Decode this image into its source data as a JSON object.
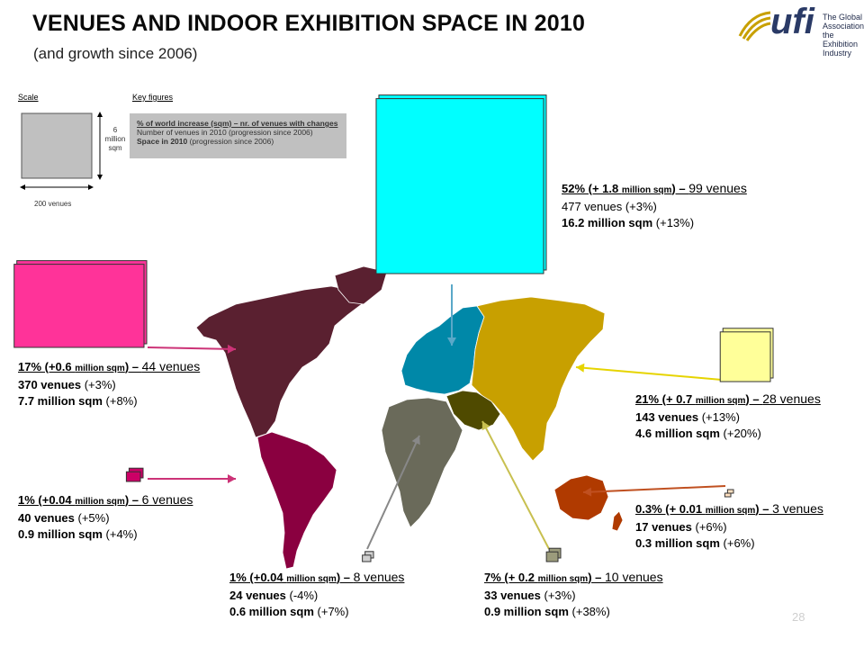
{
  "title": "VENUES AND INDOOR EXHIBITION SPACE IN 2010",
  "subtitle": "(and growth since 2006)",
  "logo": {
    "word": "ufi",
    "tagline_1": "The Global",
    "tagline_2": "Association of the",
    "tagline_3": "Exhibition Industry"
  },
  "legend": {
    "scale_label": "Scale",
    "key_label": "Key figures",
    "height_label_1": "6",
    "height_label_2": "million",
    "height_label_3": "sqm",
    "width_label": "200 venues",
    "key_line_1": "% of world increase (sqm) – nr. of venues with changes",
    "key_line_2": "Number of venues in 2010 (progression since 2006)",
    "key_line_3_bold": "Space in 2010",
    "key_line_3_rest": " (progression since 2006)"
  },
  "page_number": "28",
  "colors": {
    "europe": "#00ffff",
    "europe_map": "#0088a8",
    "north_america": "#ff3399",
    "north_america_map": "#5a2030",
    "asia": "#ffff99",
    "asia_map": "#c8a000",
    "latin_america": "#cc0066",
    "latin_america_map": "#8a0040",
    "africa": "#d0d0d0",
    "africa_map": "#6a6a5a",
    "middle_east": "#9c9c7c",
    "middle_east_map": "#4f4a00",
    "oceania": "#ffe0c0",
    "oceania_map": "#b03a00"
  },
  "chart_data": {
    "type": "map-proportional-rectangles",
    "title": "VENUES AND INDOOR EXHIBITION SPACE IN 2010",
    "subtitle": "(and growth since 2006)",
    "scale": {
      "height_value": 6,
      "height_unit": "million sqm",
      "width_value": 200,
      "width_unit": "venues"
    },
    "regions": [
      {
        "key": "europe",
        "share_of_increase": "52%",
        "space_increase": "+ 1.8",
        "venues_with_changes": "99",
        "venues": 477,
        "venues_growth": "+3%",
        "space": 16.2,
        "space_growth": "+13%",
        "line1_a": "52% (+ 1.8 ",
        "line1_unit": "million sqm",
        "line1_b": ") – ",
        "line1_venues": "99 venues",
        "line2_a": "477 venues",
        "line2_b": " (+3%)",
        "line3_a": "16.2 million sqm",
        "line3_b": " (+13%)"
      },
      {
        "key": "asia",
        "share_of_increase": "21%",
        "space_increase": "+ 0.7",
        "venues_with_changes": "28",
        "venues": 143,
        "venues_growth": "+13%",
        "space": 4.6,
        "space_growth": "+20%",
        "line1_a": "21% (+ 0.7 ",
        "line1_unit": "million sqm",
        "line1_b": ") – ",
        "line1_venues": "28 venues",
        "line2_a": "143 venues",
        "line2_b": " (+13%)",
        "line3_a": "4.6 million sqm",
        "line3_b": " (+20%)"
      },
      {
        "key": "north_america",
        "share_of_increase": "17%",
        "space_increase": "+0.6",
        "venues_with_changes": "44",
        "venues": 370,
        "venues_growth": "+3%",
        "space": 7.7,
        "space_growth": "+8%",
        "line1_a": "17% (+0.6 ",
        "line1_unit": "million sqm",
        "line1_b": ") – ",
        "line1_venues": "44 venues",
        "line2_a": "370 venues",
        "line2_b": " (+3%)",
        "line3_a": "7.7 million sqm",
        "line3_b": " (+8%)"
      },
      {
        "key": "latin_america",
        "share_of_increase": "1%",
        "space_increase": "+0.04",
        "venues_with_changes": "6",
        "venues": 40,
        "venues_growth": "+5%",
        "space": 0.9,
        "space_growth": "+4%",
        "line1_a": "1% (+0.04 ",
        "line1_unit": "million sqm",
        "line1_b": ") – ",
        "line1_venues": "6 venues",
        "line2_a": "40 venues",
        "line2_b": " (+5%)",
        "line3_a": "0.9 million sqm",
        "line3_b": " (+4%)"
      },
      {
        "key": "africa",
        "share_of_increase": "1%",
        "space_increase": "+0.04",
        "venues_with_changes": "8",
        "venues": 24,
        "venues_growth": "-4%",
        "space": 0.6,
        "space_growth": "+7%",
        "line1_a": "1% (+0.04 ",
        "line1_unit": "million sqm",
        "line1_b": ") – ",
        "line1_venues": "8 venues",
        "line2_a": "24 venues",
        "line2_b": " (-4%)",
        "line3_a": "0.6 million sqm",
        "line3_b": " (+7%)"
      },
      {
        "key": "middle_east",
        "share_of_increase": "7%",
        "space_increase": "+ 0.2",
        "venues_with_changes": "10",
        "venues": 33,
        "venues_growth": "+3%",
        "space": 0.9,
        "space_growth": "+38%",
        "line1_a": "7% (+ 0.2 ",
        "line1_unit": "million sqm",
        "line1_b": ") – ",
        "line1_venues": "10 venues",
        "line2_a": "33 venues",
        "line2_b": " (+3%)",
        "line3_a": "0.9 million sqm",
        "line3_b": " (+38%)"
      },
      {
        "key": "oceania",
        "share_of_increase": "0.3%",
        "space_increase": "+ 0.01",
        "venues_with_changes": "3",
        "venues": 17,
        "venues_growth": "+6%",
        "space": 0.3,
        "space_growth": "+6%",
        "line1_a": "0.3% (+ 0.01 ",
        "line1_unit": "million sqm",
        "line1_b": ") – ",
        "line1_venues": "3 venues",
        "line2_a": "17 venues",
        "line2_b": " (+6%)",
        "line3_a": "0.3 million sqm",
        "line3_b": " (+6%)"
      }
    ]
  }
}
